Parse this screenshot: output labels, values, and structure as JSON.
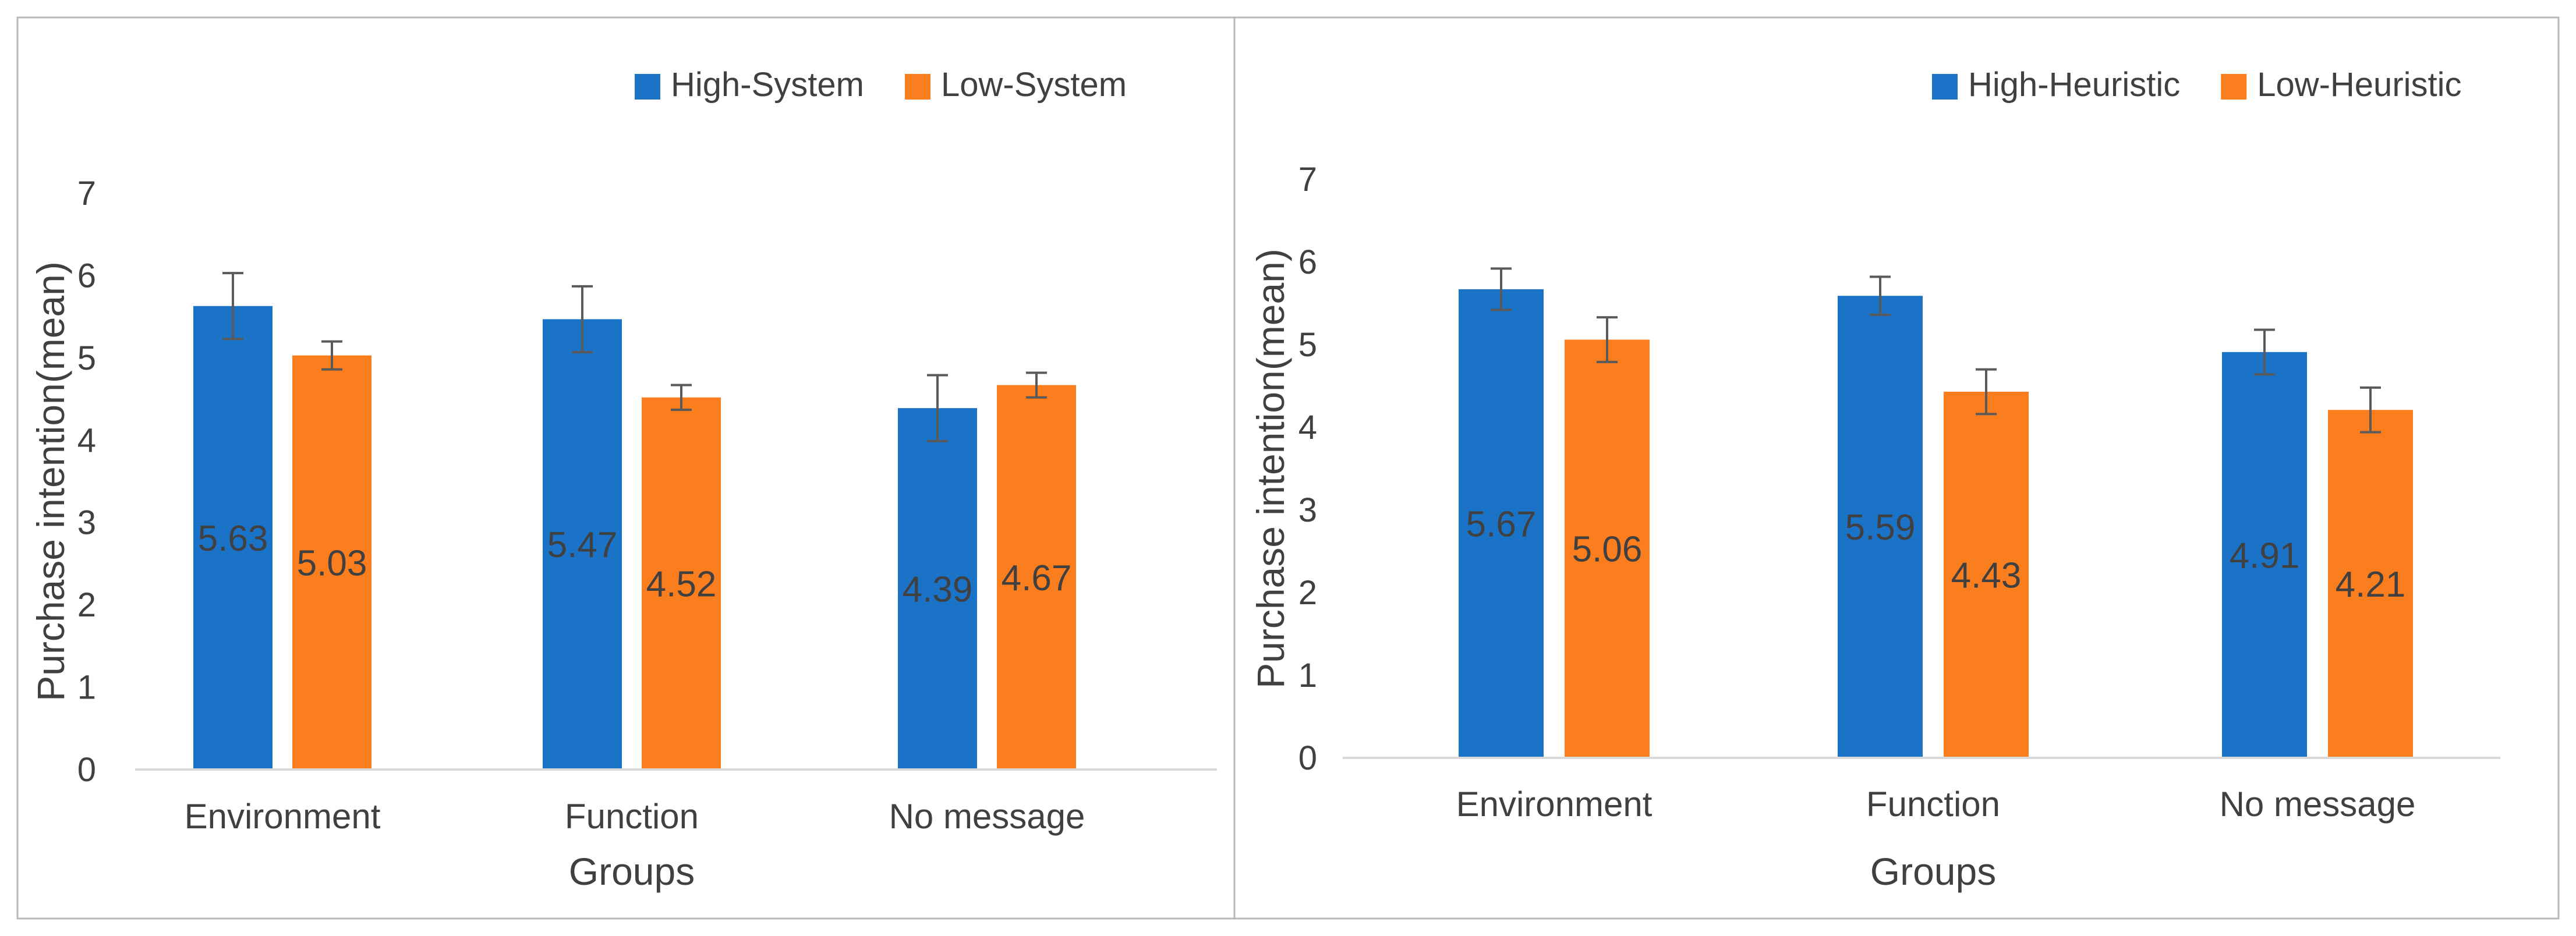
{
  "colors": {
    "series_a": "#1B73C8",
    "series_b": "#FB7E1E",
    "axis": "#D9D9D9",
    "error_bar": "#5A5A5A",
    "text": "#404040",
    "panel_border": "#B9B9B9"
  },
  "chart_data": [
    {
      "type": "bar",
      "title": "",
      "xlabel": "Groups",
      "ylabel": "Purchase intention(mean)",
      "ylim": [
        0,
        7
      ],
      "yticks": [
        "0",
        "1",
        "2",
        "3",
        "4",
        "5",
        "6",
        "7"
      ],
      "categories": [
        "Environment",
        "Function",
        "No message"
      ],
      "legend_position": "top-right",
      "series": [
        {
          "name": "High-System",
          "values": [
            5.63,
            5.47,
            4.39
          ],
          "labels": [
            "5.63",
            "5.47",
            "4.39"
          ],
          "error": [
            0.4,
            0.4,
            0.4
          ]
        },
        {
          "name": "Low-System",
          "values": [
            5.03,
            4.52,
            4.67
          ],
          "labels": [
            "5.03",
            "4.52",
            "4.67"
          ],
          "error": [
            0.17,
            0.15,
            0.15
          ]
        }
      ]
    },
    {
      "type": "bar",
      "title": "",
      "xlabel": "Groups",
      "ylabel": "Purchase intention(mean)",
      "ylim": [
        0,
        7
      ],
      "yticks": [
        "0",
        "1",
        "2",
        "3",
        "4",
        "5",
        "6",
        "7"
      ],
      "categories": [
        "Environment",
        "Function",
        "No message"
      ],
      "legend_position": "top-right",
      "series": [
        {
          "name": "High-Heuristic",
          "values": [
            5.67,
            5.59,
            4.91
          ],
          "labels": [
            "5.67",
            "5.59",
            "4.91"
          ],
          "error": [
            0.25,
            0.23,
            0.27
          ]
        },
        {
          "name": "Low-Heuristic",
          "values": [
            5.06,
            4.43,
            4.21
          ],
          "labels": [
            "5.06",
            "4.43",
            "4.21"
          ],
          "error": [
            0.27,
            0.27,
            0.27
          ]
        }
      ]
    }
  ]
}
